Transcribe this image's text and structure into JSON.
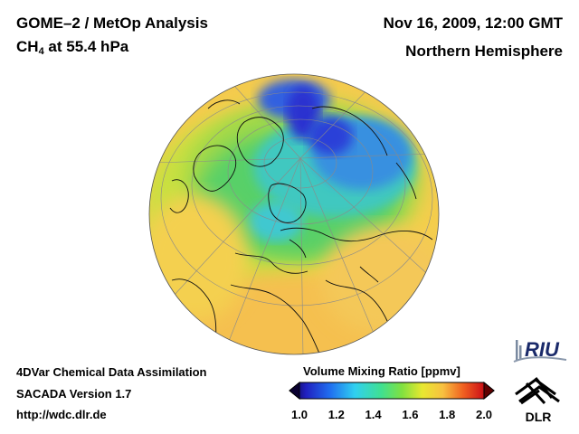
{
  "header": {
    "title": "GOME–2 / MetOp Analysis",
    "species": "CH",
    "species_sub": "4",
    "level": " at 55.4 hPa",
    "datetime": "Nov 16, 2009, 12:00 GMT",
    "region": "Northern Hemisphere"
  },
  "footer": {
    "line1": "4DVar Chemical Data Assimilation",
    "line2": "SACADA Version 1.7",
    "line3": "http://wdc.dlr.de"
  },
  "colorbar": {
    "title": "Volume Mixing Ratio [ppmv]",
    "ticks": [
      "1.0",
      "1.2",
      "1.4",
      "1.6",
      "1.8",
      "2.0"
    ],
    "range": [
      1.0,
      2.0
    ]
  },
  "logos": {
    "riu": "RIU",
    "dlr": "DLR"
  },
  "colors": {
    "low": "#3020c8",
    "mid": "#40c8e8",
    "green": "#50d050",
    "yellow": "#f0e040",
    "high": "#e02020"
  }
}
